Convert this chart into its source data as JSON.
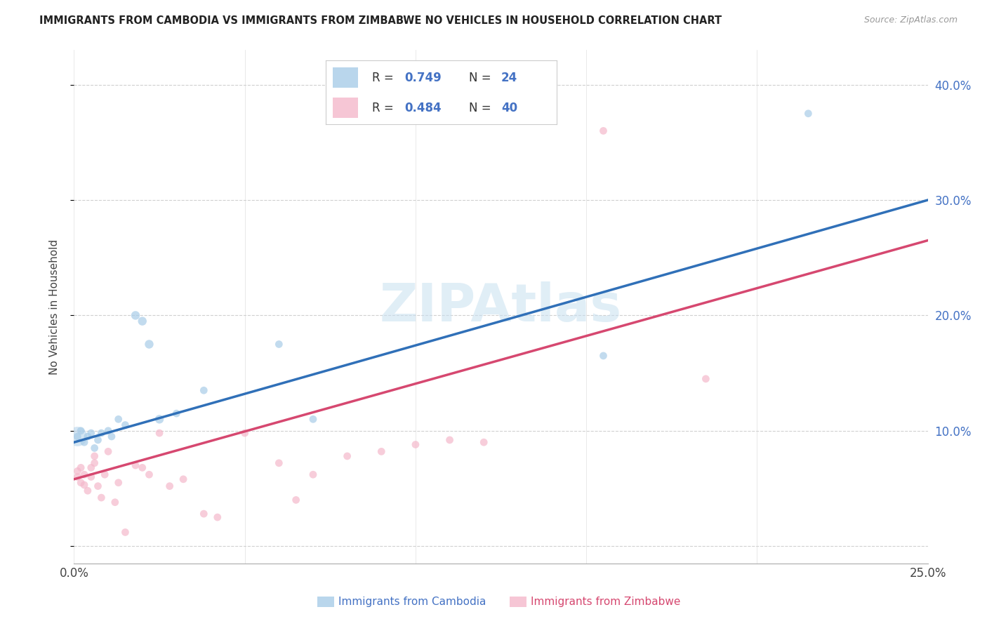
{
  "title": "IMMIGRANTS FROM CAMBODIA VS IMMIGRANTS FROM ZIMBABWE NO VEHICLES IN HOUSEHOLD CORRELATION CHART",
  "source": "Source: ZipAtlas.com",
  "ylabel": "No Vehicles in Household",
  "xlim": [
    0.0,
    0.25
  ],
  "ylim": [
    -0.015,
    0.43
  ],
  "yticks": [
    0.0,
    0.1,
    0.2,
    0.3,
    0.4
  ],
  "xticks": [
    0.0,
    0.05,
    0.1,
    0.15,
    0.2,
    0.25
  ],
  "label_blue": "Immigrants from Cambodia",
  "label_pink": "Immigrants from Zimbabwe",
  "blue_color": "#a8cce8",
  "pink_color": "#f4b8cb",
  "blue_line_color": "#3070b8",
  "pink_line_color": "#d64870",
  "watermark": "ZIPAtlas",
  "cambodia_x": [
    0.001,
    0.002,
    0.003,
    0.004,
    0.005,
    0.006,
    0.007,
    0.008,
    0.01,
    0.011,
    0.013,
    0.015,
    0.018,
    0.02,
    0.022,
    0.025,
    0.03,
    0.038,
    0.06,
    0.07,
    0.155,
    0.215
  ],
  "cambodia_y": [
    0.095,
    0.1,
    0.09,
    0.095,
    0.098,
    0.085,
    0.092,
    0.098,
    0.1,
    0.095,
    0.11,
    0.105,
    0.2,
    0.195,
    0.175,
    0.11,
    0.115,
    0.135,
    0.175,
    0.11,
    0.165,
    0.375
  ],
  "cambodia_sizes": [
    60,
    60,
    60,
    60,
    60,
    60,
    60,
    60,
    60,
    60,
    60,
    60,
    80,
    80,
    80,
    80,
    60,
    60,
    60,
    60,
    60,
    60
  ],
  "cambodia_large_x": [
    0.001
  ],
  "cambodia_large_y": [
    0.095
  ],
  "zimbabwe_x": [
    0.001,
    0.001,
    0.002,
    0.002,
    0.003,
    0.003,
    0.004,
    0.005,
    0.005,
    0.006,
    0.006,
    0.007,
    0.008,
    0.009,
    0.01,
    0.012,
    0.013,
    0.015,
    0.018,
    0.02,
    0.022,
    0.025,
    0.028,
    0.032,
    0.038,
    0.042,
    0.05,
    0.06,
    0.065,
    0.07,
    0.08,
    0.09,
    0.1,
    0.11,
    0.12,
    0.155,
    0.185
  ],
  "zimbabwe_y": [
    0.065,
    0.06,
    0.055,
    0.068,
    0.062,
    0.053,
    0.048,
    0.06,
    0.068,
    0.072,
    0.078,
    0.052,
    0.042,
    0.062,
    0.082,
    0.038,
    0.055,
    0.012,
    0.07,
    0.068,
    0.062,
    0.098,
    0.052,
    0.058,
    0.028,
    0.025,
    0.098,
    0.072,
    0.04,
    0.062,
    0.078,
    0.082,
    0.088,
    0.092,
    0.09,
    0.36,
    0.145
  ],
  "blue_trend_x0": 0.0,
  "blue_trend_y0": 0.09,
  "blue_trend_x1": 0.25,
  "blue_trend_y1": 0.3,
  "pink_trend_x0": 0.0,
  "pink_trend_y0": 0.058,
  "pink_trend_x1": 0.25,
  "pink_trend_y1": 0.265
}
